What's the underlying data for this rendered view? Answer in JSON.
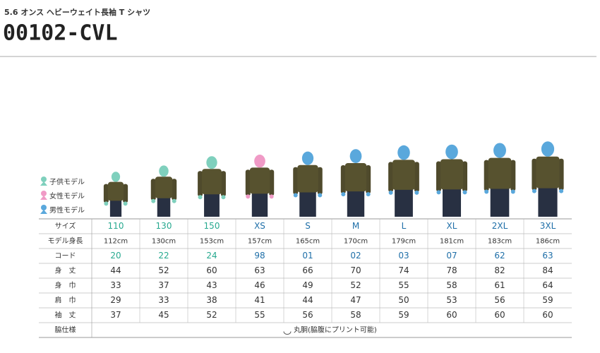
{
  "header": {
    "subtitle": "5.6 オンス ヘビーウェイト長袖 T シャツ",
    "title": "00102-CVL"
  },
  "legend": [
    {
      "label": "子供モデル",
      "color": "#7fd0bd"
    },
    {
      "label": "女性モデル",
      "color": "#f09ac6"
    },
    {
      "label": "男性モデル",
      "color": "#5aa8dc"
    }
  ],
  "table": {
    "size_colors": [
      "#27a98f",
      "#27a98f",
      "#27a98f",
      "#1f6fa8",
      "#1f6fa8",
      "#1f6fa8",
      "#1f6fa8",
      "#1f6fa8",
      "#1f6fa8",
      "#1f6fa8"
    ],
    "rows": [
      [
        "サイズ",
        "110",
        "130",
        "150",
        "XS",
        "S",
        "M",
        "L",
        "XL",
        "2XL",
        "3XL"
      ],
      [
        "モデル身長",
        "112cm",
        "130cm",
        "153cm",
        "157cm",
        "165cm",
        "170cm",
        "179cm",
        "181cm",
        "183cm",
        "186cm"
      ],
      [
        "コード",
        "20",
        "22",
        "24",
        "98",
        "01",
        "02",
        "03",
        "07",
        "62",
        "63"
      ],
      [
        "身　丈",
        "44",
        "52",
        "60",
        "63",
        "66",
        "70",
        "74",
        "78",
        "82",
        "84"
      ],
      [
        "身　巾",
        "33",
        "37",
        "43",
        "46",
        "49",
        "52",
        "55",
        "58",
        "61",
        "64"
      ],
      [
        "肩　巾",
        "29",
        "33",
        "38",
        "41",
        "44",
        "47",
        "50",
        "53",
        "56",
        "59"
      ],
      [
        "袖　丈",
        "37",
        "45",
        "52",
        "55",
        "56",
        "58",
        "59",
        "60",
        "60",
        "60"
      ]
    ],
    "footer": {
      "label": "脇仕様",
      "value": "丸胴(脇腹にプリント可能)"
    }
  }
}
